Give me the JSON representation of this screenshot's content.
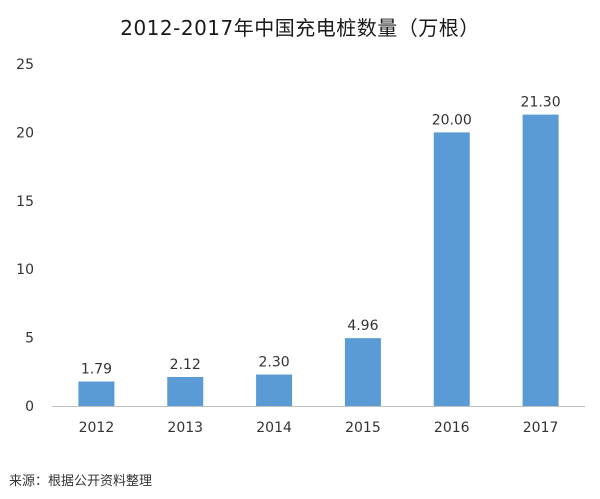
{
  "chart_data": {
    "type": "bar",
    "title": "2012-2017年中国充电桩数量（万根）",
    "source": "来源：根据公开资料整理",
    "categories": [
      "2012",
      "2013",
      "2014",
      "2015",
      "2016",
      "2017"
    ],
    "values": [
      1.79,
      2.12,
      2.3,
      4.96,
      20.0,
      21.3
    ],
    "data_labels": [
      "1.79",
      "2.12",
      "2.30",
      "4.96",
      "20.00",
      "21.30"
    ],
    "y_ticks": [
      0,
      5,
      10,
      15,
      20,
      25
    ],
    "ylim": [
      0,
      25
    ],
    "xlabel": "",
    "ylabel": "",
    "grid": false,
    "legend": "none",
    "bar_color": "#5b9bd5",
    "axis_color": "#bfbfbf"
  }
}
